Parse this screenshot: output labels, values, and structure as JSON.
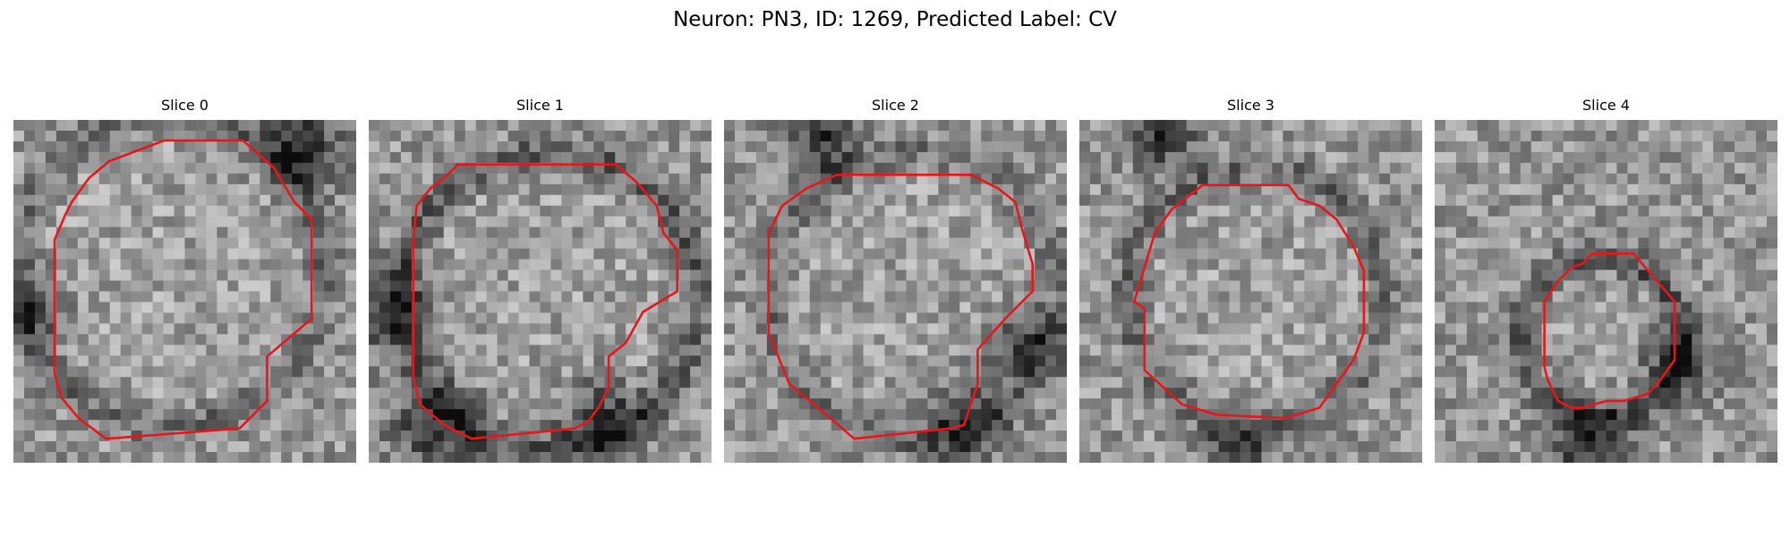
{
  "figure": {
    "title": "Neuron: PN3, ID: 1269, Predicted Label: CV"
  },
  "slices": [
    {
      "title": "Slice 0",
      "seed": 11,
      "dark_ring": 0.55,
      "blobs": [
        [
          0.85,
          0.08,
          0.12
        ],
        [
          0.05,
          0.55,
          0.1
        ]
      ],
      "contour": [
        [
          0.44,
          0.06
        ],
        [
          0.67,
          0.06
        ],
        [
          0.76,
          0.14
        ],
        [
          0.82,
          0.24
        ],
        [
          0.87,
          0.29
        ],
        [
          0.87,
          0.58
        ],
        [
          0.74,
          0.69
        ],
        [
          0.74,
          0.82
        ],
        [
          0.66,
          0.9
        ],
        [
          0.27,
          0.93
        ],
        [
          0.19,
          0.87
        ],
        [
          0.14,
          0.81
        ],
        [
          0.12,
          0.74
        ],
        [
          0.12,
          0.35
        ],
        [
          0.15,
          0.28
        ],
        [
          0.17,
          0.24
        ],
        [
          0.22,
          0.17
        ],
        [
          0.28,
          0.12
        ],
        [
          0.36,
          0.09
        ]
      ]
    },
    {
      "title": "Slice 1",
      "seed": 23,
      "dark_ring": 0.75,
      "blobs": [
        [
          0.2,
          0.9,
          0.13
        ],
        [
          0.68,
          0.88,
          0.12
        ],
        [
          0.05,
          0.55,
          0.12
        ]
      ],
      "contour": [
        [
          0.23,
          0.16
        ],
        [
          0.26,
          0.13
        ],
        [
          0.72,
          0.13
        ],
        [
          0.78,
          0.18
        ],
        [
          0.84,
          0.25
        ],
        [
          0.86,
          0.33
        ],
        [
          0.9,
          0.38
        ],
        [
          0.9,
          0.5
        ],
        [
          0.8,
          0.56
        ],
        [
          0.75,
          0.65
        ],
        [
          0.7,
          0.69
        ],
        [
          0.7,
          0.78
        ],
        [
          0.67,
          0.84
        ],
        [
          0.64,
          0.88
        ],
        [
          0.6,
          0.9
        ],
        [
          0.3,
          0.93
        ],
        [
          0.22,
          0.89
        ],
        [
          0.15,
          0.83
        ],
        [
          0.13,
          0.75
        ],
        [
          0.13,
          0.35
        ],
        [
          0.14,
          0.25
        ],
        [
          0.18,
          0.2
        ]
      ]
    },
    {
      "title": "Slice 2",
      "seed": 37,
      "dark_ring": 0.5,
      "blobs": [
        [
          0.28,
          0.06,
          0.1
        ],
        [
          0.88,
          0.66,
          0.1
        ],
        [
          0.7,
          0.88,
          0.12
        ]
      ],
      "contour": [
        [
          0.33,
          0.16
        ],
        [
          0.72,
          0.16
        ],
        [
          0.8,
          0.2
        ],
        [
          0.85,
          0.24
        ],
        [
          0.87,
          0.32
        ],
        [
          0.9,
          0.42
        ],
        [
          0.9,
          0.5
        ],
        [
          0.82,
          0.58
        ],
        [
          0.74,
          0.67
        ],
        [
          0.74,
          0.77
        ],
        [
          0.7,
          0.89
        ],
        [
          0.66,
          0.9
        ],
        [
          0.38,
          0.93
        ],
        [
          0.31,
          0.87
        ],
        [
          0.19,
          0.77
        ],
        [
          0.13,
          0.62
        ],
        [
          0.13,
          0.33
        ],
        [
          0.17,
          0.25
        ],
        [
          0.24,
          0.2
        ]
      ]
    },
    {
      "title": "Slice 3",
      "seed": 51,
      "dark_ring": 0.6,
      "blobs": [
        [
          0.25,
          0.04,
          0.1
        ],
        [
          0.46,
          0.97,
          0.1
        ]
      ],
      "contour": [
        [
          0.36,
          0.19
        ],
        [
          0.61,
          0.19
        ],
        [
          0.64,
          0.23
        ],
        [
          0.7,
          0.25
        ],
        [
          0.75,
          0.29
        ],
        [
          0.8,
          0.37
        ],
        [
          0.83,
          0.44
        ],
        [
          0.83,
          0.62
        ],
        [
          0.8,
          0.7
        ],
        [
          0.75,
          0.77
        ],
        [
          0.7,
          0.84
        ],
        [
          0.6,
          0.87
        ],
        [
          0.4,
          0.86
        ],
        [
          0.3,
          0.83
        ],
        [
          0.19,
          0.73
        ],
        [
          0.19,
          0.55
        ],
        [
          0.16,
          0.53
        ],
        [
          0.19,
          0.43
        ],
        [
          0.22,
          0.33
        ],
        [
          0.27,
          0.26
        ]
      ]
    },
    {
      "title": "Slice 4",
      "seed": 73,
      "dark_ring": 0.85,
      "blobs": [
        [
          0.44,
          0.93,
          0.11
        ],
        [
          0.7,
          0.72,
          0.1
        ]
      ],
      "contour": [
        [
          0.46,
          0.39
        ],
        [
          0.58,
          0.39
        ],
        [
          0.64,
          0.46
        ],
        [
          0.7,
          0.53
        ],
        [
          0.7,
          0.7
        ],
        [
          0.65,
          0.77
        ],
        [
          0.62,
          0.8
        ],
        [
          0.55,
          0.82
        ],
        [
          0.5,
          0.82
        ],
        [
          0.43,
          0.84
        ],
        [
          0.4,
          0.84
        ],
        [
          0.36,
          0.82
        ],
        [
          0.33,
          0.76
        ],
        [
          0.32,
          0.72
        ],
        [
          0.32,
          0.53
        ],
        [
          0.36,
          0.47
        ],
        [
          0.4,
          0.43
        ],
        [
          0.43,
          0.42
        ]
      ]
    }
  ],
  "colors": {
    "contour": "#e8161b"
  }
}
